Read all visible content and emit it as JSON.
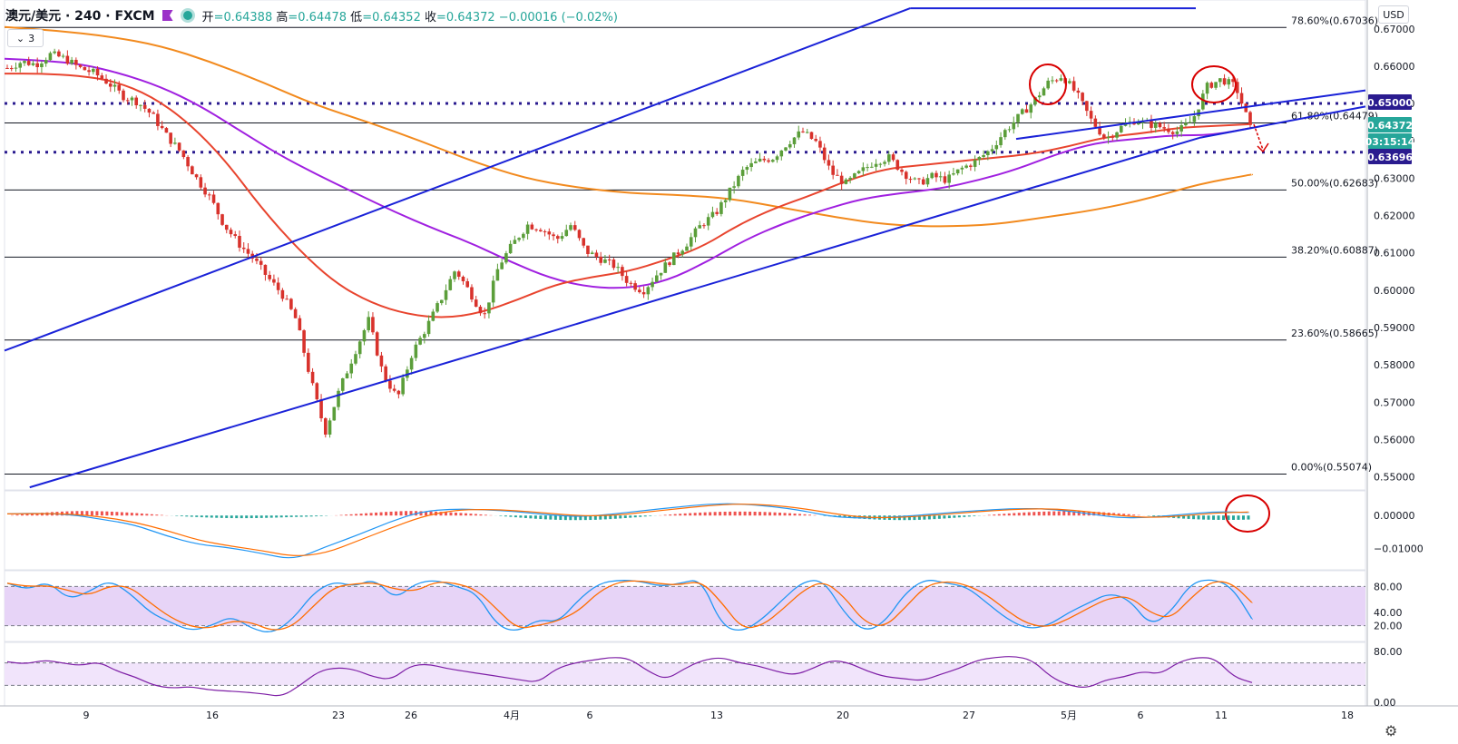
{
  "header": {
    "symbol": "澳元/美元 · 240 · FXCM",
    "open_label": "开",
    "open": "=0.64388",
    "high_label": "高",
    "high": "=0.64478",
    "low_label": "低",
    "low": "=0.64352",
    "close_label": "收",
    "close": "=0.64372",
    "change": "−0.00016 (−0.02%)",
    "indicator_count": "3",
    "currency": "USD"
  },
  "colors": {
    "up": "#5b9e3a",
    "down": "#d8322c",
    "channel": "#1a22d8",
    "ma_red": "#e8442e",
    "ma_purple": "#a020e0",
    "ma_orange": "#f28a1e",
    "level_dotted": "#2a1b8f",
    "annotation": "#d80000"
  },
  "chart_data": {
    "type": "line",
    "price_axis": {
      "ylim": [
        0.5465,
        0.6765
      ],
      "ticks": [
        "0.67000",
        "0.66000",
        "0.65000",
        "0.64000",
        "0.63000",
        "0.62000",
        "0.61000",
        "0.60000",
        "0.59000",
        "0.58000",
        "0.57000",
        "0.56000",
        "0.55000"
      ]
    },
    "x_ticks": [
      "9",
      "16",
      "23",
      "26",
      "4月",
      "6",
      "13",
      "20",
      "27",
      "5月",
      "6",
      "11",
      "18"
    ],
    "fib_levels": [
      {
        "label": "78.60%(0.67036)",
        "value": 0.67036
      },
      {
        "label": "61.80%(0.64479)",
        "value": 0.64479
      },
      {
        "label": "50.00%(0.62683)",
        "value": 0.62683
      },
      {
        "label": "38.20%(0.60887)",
        "value": 0.60887
      },
      {
        "label": "23.60%(0.58665)",
        "value": 0.58665
      },
      {
        "label": "0.00%(0.55074)",
        "value": 0.55074
      }
    ],
    "price_tags": [
      {
        "label": "0.65000",
        "color": "#2a1b8f"
      },
      {
        "label": "0.64372",
        "color": "#26a69a"
      },
      {
        "label": "03:15:14",
        "color": "#26a69a"
      },
      {
        "label": "0.63696",
        "color": "#2a1b8f"
      }
    ],
    "horizontal_levels": [
      0.65,
      0.63696
    ],
    "candles_close_path": [
      0.6595,
      0.6612,
      0.6605,
      0.6632,
      0.662,
      0.6595,
      0.6582,
      0.6555,
      0.652,
      0.6505,
      0.647,
      0.6415,
      0.637,
      0.6305,
      0.625,
      0.6175,
      0.6125,
      0.6085,
      0.6035,
      0.599,
      0.592,
      0.576,
      0.562,
      0.5735,
      0.583,
      0.592,
      0.5775,
      0.571,
      0.583,
      0.59,
      0.5975,
      0.6055,
      0.5995,
      0.593,
      0.6065,
      0.6125,
      0.6175,
      0.6165,
      0.6135,
      0.6175,
      0.6105,
      0.6085,
      0.6065,
      0.602,
      0.5998,
      0.6045,
      0.6085,
      0.6125,
      0.6175,
      0.6205,
      0.6265,
      0.6325,
      0.6345,
      0.6355,
      0.6395,
      0.6425,
      0.6395,
      0.6315,
      0.6285,
      0.6315,
      0.6345,
      0.6355,
      0.6315,
      0.6285,
      0.6305,
      0.6295,
      0.6325,
      0.6345,
      0.6375,
      0.6425,
      0.6465,
      0.6505,
      0.6555,
      0.6575,
      0.6525,
      0.6455,
      0.6405,
      0.6435,
      0.6455,
      0.6445,
      0.6435,
      0.6425,
      0.6455,
      0.6545,
      0.6565,
      0.6545,
      0.6437
    ],
    "ma_red": [
      0.658,
      0.658,
      0.6575,
      0.656,
      0.652,
      0.645,
      0.635,
      0.622,
      0.611,
      0.602,
      0.5965,
      0.5935,
      0.5925,
      0.594,
      0.5975,
      0.6015,
      0.6035,
      0.605,
      0.608,
      0.6115,
      0.6175,
      0.622,
      0.6255,
      0.6295,
      0.6325,
      0.6335,
      0.6345,
      0.6355,
      0.6365,
      0.6385,
      0.641,
      0.642,
      0.6435,
      0.644,
      0.6445
    ],
    "ma_purple": [
      0.662,
      0.6615,
      0.6605,
      0.658,
      0.6545,
      0.6495,
      0.643,
      0.6365,
      0.631,
      0.626,
      0.621,
      0.6165,
      0.6125,
      0.6075,
      0.6032,
      0.6008,
      0.6005,
      0.6025,
      0.6075,
      0.6135,
      0.618,
      0.6215,
      0.6245,
      0.626,
      0.6272,
      0.6295,
      0.6325,
      0.6365,
      0.6395,
      0.6405,
      0.6415,
      0.6415,
      0.6435
    ],
    "ma_orange": [
      0.6705,
      0.6695,
      0.668,
      0.6655,
      0.661,
      0.6555,
      0.6495,
      0.645,
      0.64,
      0.6345,
      0.63,
      0.6275,
      0.626,
      0.6255,
      0.6245,
      0.622,
      0.6195,
      0.6175,
      0.617,
      0.6175,
      0.6195,
      0.6215,
      0.6245,
      0.6285,
      0.631
    ],
    "channel_top": [
      [
        0.6248,
        0.5837
      ],
      [
        0.6655,
        0.6755
      ],
      [
        0.9595,
        0.6535
      ]
    ],
    "channel_bottom": [
      [
        0.0185,
        0.5472
      ],
      [
        0.878,
        0.6408
      ],
      [
        0.9595,
        0.6492
      ]
    ],
    "macd": {
      "ticks": [
        "0.00000",
        "−0.01000"
      ],
      "ylim": [
        -0.0165,
        0.0075
      ]
    },
    "stoch": {
      "ticks": [
        "80.00",
        "40.00",
        "20.00"
      ],
      "band": [
        20,
        80
      ],
      "ylim": [
        0,
        100
      ]
    },
    "rsi": {
      "ticks": [
        "80.00",
        "0.00"
      ],
      "band": [
        30,
        70
      ],
      "ylim": [
        0,
        100
      ]
    }
  }
}
